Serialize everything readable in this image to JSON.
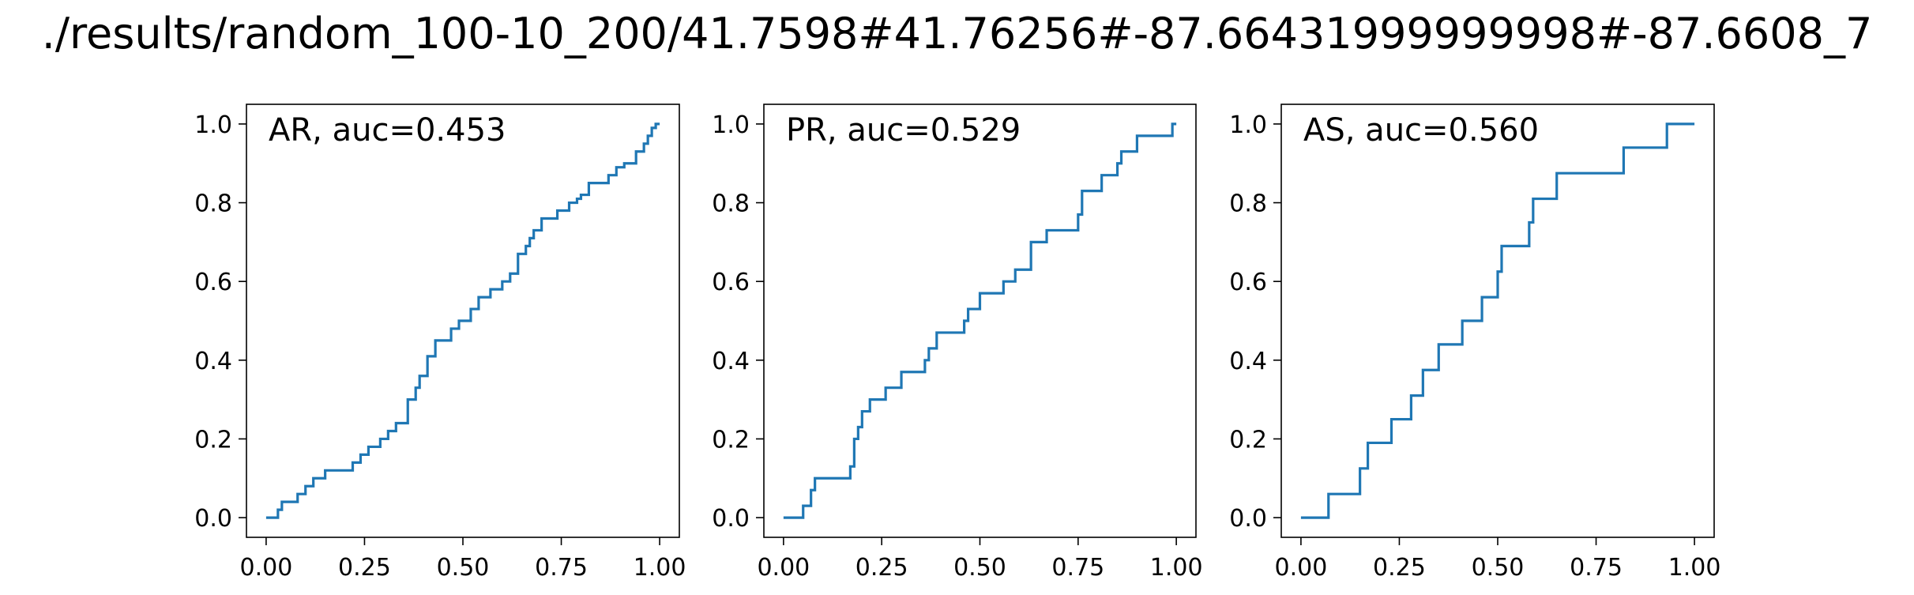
{
  "figure": {
    "title": "./results/random_100-10_200/41.7598#41.76256#-87.66431999999998#-87.6608_7"
  },
  "chart_data": [
    {
      "type": "line",
      "label": "AR, auc=0.453",
      "xlim": [
        -0.05,
        1.05
      ],
      "ylim": [
        -0.05,
        1.05
      ],
      "x_ticks": [
        "0.00",
        "0.25",
        "0.50",
        "0.75",
        "1.00"
      ],
      "y_ticks": [
        "0.0",
        "0.2",
        "0.4",
        "0.6",
        "0.8",
        "1.0"
      ],
      "grid": false,
      "series": [
        {
          "color": "#1f77b4",
          "x": [
            0.0,
            0.03,
            0.03,
            0.04,
            0.04,
            0.08,
            0.08,
            0.1,
            0.1,
            0.12,
            0.12,
            0.15,
            0.15,
            0.22,
            0.22,
            0.24,
            0.24,
            0.26,
            0.26,
            0.29,
            0.29,
            0.31,
            0.31,
            0.33,
            0.33,
            0.36,
            0.36,
            0.38,
            0.38,
            0.39,
            0.39,
            0.41,
            0.41,
            0.43,
            0.43,
            0.47,
            0.47,
            0.49,
            0.49,
            0.52,
            0.52,
            0.54,
            0.54,
            0.57,
            0.57,
            0.6,
            0.6,
            0.62,
            0.62,
            0.64,
            0.64,
            0.66,
            0.66,
            0.67,
            0.67,
            0.68,
            0.68,
            0.7,
            0.7,
            0.74,
            0.74,
            0.77,
            0.77,
            0.79,
            0.79,
            0.8,
            0.8,
            0.82,
            0.82,
            0.87,
            0.87,
            0.89,
            0.89,
            0.91,
            0.91,
            0.94,
            0.94,
            0.96,
            0.96,
            0.97,
            0.97,
            0.98,
            0.98,
            0.99,
            0.99,
            1.0
          ],
          "y": [
            0.0,
            0.0,
            0.02,
            0.02,
            0.04,
            0.04,
            0.06,
            0.06,
            0.08,
            0.08,
            0.1,
            0.1,
            0.12,
            0.12,
            0.14,
            0.14,
            0.16,
            0.16,
            0.18,
            0.18,
            0.2,
            0.2,
            0.22,
            0.22,
            0.24,
            0.24,
            0.3,
            0.3,
            0.33,
            0.33,
            0.36,
            0.36,
            0.41,
            0.41,
            0.45,
            0.45,
            0.48,
            0.48,
            0.5,
            0.5,
            0.53,
            0.53,
            0.56,
            0.56,
            0.58,
            0.58,
            0.6,
            0.6,
            0.62,
            0.62,
            0.67,
            0.67,
            0.69,
            0.69,
            0.71,
            0.71,
            0.73,
            0.73,
            0.76,
            0.76,
            0.78,
            0.78,
            0.8,
            0.8,
            0.81,
            0.81,
            0.82,
            0.82,
            0.85,
            0.85,
            0.87,
            0.87,
            0.89,
            0.89,
            0.9,
            0.9,
            0.93,
            0.93,
            0.95,
            0.95,
            0.97,
            0.97,
            0.99,
            0.99,
            1.0,
            1.0
          ]
        }
      ]
    },
    {
      "type": "line",
      "label": "PR, auc=0.529",
      "xlim": [
        -0.05,
        1.05
      ],
      "ylim": [
        -0.05,
        1.05
      ],
      "x_ticks": [
        "0.00",
        "0.25",
        "0.50",
        "0.75",
        "1.00"
      ],
      "y_ticks": [
        "0.0",
        "0.2",
        "0.4",
        "0.6",
        "0.8",
        "1.0"
      ],
      "grid": false,
      "series": [
        {
          "color": "#1f77b4",
          "x": [
            0.0,
            0.05,
            0.05,
            0.07,
            0.07,
            0.08,
            0.08,
            0.17,
            0.17,
            0.18,
            0.18,
            0.19,
            0.19,
            0.2,
            0.2,
            0.22,
            0.22,
            0.26,
            0.26,
            0.3,
            0.3,
            0.36,
            0.36,
            0.37,
            0.37,
            0.39,
            0.39,
            0.46,
            0.46,
            0.47,
            0.47,
            0.5,
            0.5,
            0.56,
            0.56,
            0.59,
            0.59,
            0.63,
            0.63,
            0.67,
            0.67,
            0.75,
            0.75,
            0.76,
            0.76,
            0.81,
            0.81,
            0.85,
            0.85,
            0.86,
            0.86,
            0.9,
            0.9,
            0.99,
            0.99,
            1.0
          ],
          "y": [
            0.0,
            0.0,
            0.03,
            0.03,
            0.07,
            0.07,
            0.1,
            0.1,
            0.13,
            0.13,
            0.2,
            0.2,
            0.23,
            0.23,
            0.27,
            0.27,
            0.3,
            0.3,
            0.33,
            0.33,
            0.37,
            0.37,
            0.4,
            0.4,
            0.43,
            0.43,
            0.47,
            0.47,
            0.5,
            0.5,
            0.53,
            0.53,
            0.57,
            0.57,
            0.6,
            0.6,
            0.63,
            0.63,
            0.7,
            0.7,
            0.73,
            0.73,
            0.77,
            0.77,
            0.83,
            0.83,
            0.87,
            0.87,
            0.9,
            0.9,
            0.93,
            0.93,
            0.97,
            0.97,
            1.0,
            1.0
          ]
        }
      ]
    },
    {
      "type": "line",
      "label": "AS, auc=0.560",
      "xlim": [
        -0.05,
        1.05
      ],
      "ylim": [
        -0.05,
        1.05
      ],
      "x_ticks": [
        "0.00",
        "0.25",
        "0.50",
        "0.75",
        "1.00"
      ],
      "y_ticks": [
        "0.0",
        "0.2",
        "0.4",
        "0.6",
        "0.8",
        "1.0"
      ],
      "grid": false,
      "series": [
        {
          "color": "#1f77b4",
          "x": [
            0.0,
            0.07,
            0.07,
            0.15,
            0.15,
            0.17,
            0.17,
            0.23,
            0.23,
            0.28,
            0.28,
            0.31,
            0.31,
            0.35,
            0.35,
            0.41,
            0.41,
            0.46,
            0.46,
            0.5,
            0.5,
            0.51,
            0.51,
            0.58,
            0.58,
            0.59,
            0.59,
            0.65,
            0.65,
            0.82,
            0.82,
            0.93,
            0.93,
            1.0
          ],
          "y": [
            0.0,
            0.0,
            0.06,
            0.06,
            0.125,
            0.125,
            0.19,
            0.19,
            0.25,
            0.25,
            0.31,
            0.31,
            0.375,
            0.375,
            0.44,
            0.44,
            0.5,
            0.5,
            0.56,
            0.56,
            0.625,
            0.625,
            0.69,
            0.69,
            0.75,
            0.75,
            0.81,
            0.81,
            0.875,
            0.875,
            0.94,
            0.94,
            1.0,
            1.0
          ]
        }
      ]
    }
  ]
}
